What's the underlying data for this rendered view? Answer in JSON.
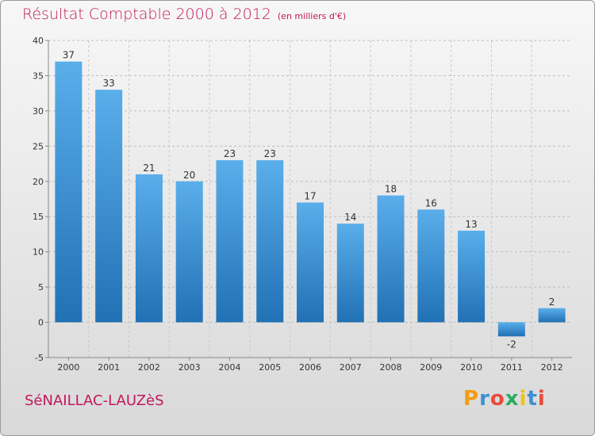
{
  "header": {
    "title": "Résultat Comptable 2000 à 2012",
    "unit": "(en milliers d'€)"
  },
  "footer": {
    "commune": "SéNAILLAC-LAUZèS",
    "logo_letters": [
      "P",
      "r",
      "o",
      "x",
      "i",
      "t",
      "i"
    ],
    "logo_colors": [
      "#f39c12",
      "#3d8fd1",
      "#e74c3c",
      "#27ae60",
      "#f1c40f",
      "#3d8fd1",
      "#e74c3c"
    ]
  },
  "colors": {
    "bar_top": "#5aaeea",
    "bar_bottom": "#2171b5",
    "title": "#c2185b"
  },
  "chart_data": {
    "type": "bar",
    "categories": [
      "2000",
      "2001",
      "2002",
      "2003",
      "2004",
      "2005",
      "2006",
      "2007",
      "2008",
      "2009",
      "2010",
      "2011",
      "2012"
    ],
    "values": [
      37,
      33,
      21,
      20,
      23,
      23,
      17,
      14,
      18,
      16,
      13,
      -2,
      2
    ],
    "ylim": [
      -5,
      40
    ],
    "yticks": [
      -5,
      0,
      5,
      10,
      15,
      20,
      25,
      30,
      35,
      40
    ],
    "grid": true
  }
}
